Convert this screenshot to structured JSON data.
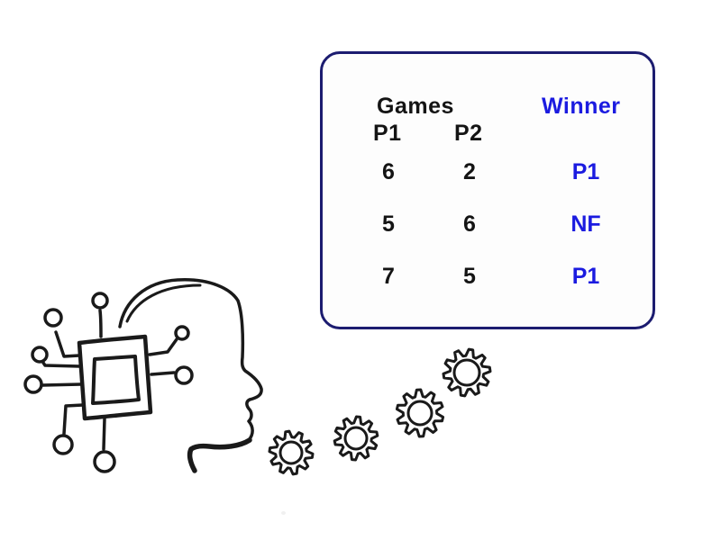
{
  "panel": {
    "games_label": "Games",
    "winner_label": "Winner",
    "col_p1": "P1",
    "col_p2": "P2",
    "rows": [
      {
        "p1": "6",
        "p2": "2",
        "winner": "P1"
      },
      {
        "p1": "5",
        "p2": "6",
        "winner": "NF"
      },
      {
        "p1": "7",
        "p2": "5",
        "winner": "P1"
      }
    ]
  },
  "colors": {
    "panel_border": "#1c1c70",
    "winner_text": "#1b1be0",
    "body_text": "#141414",
    "sketch_stroke": "#1a1a1a"
  },
  "icons": {
    "head_chip": "head-with-microchip-sketch",
    "gear": "gear-icon"
  }
}
